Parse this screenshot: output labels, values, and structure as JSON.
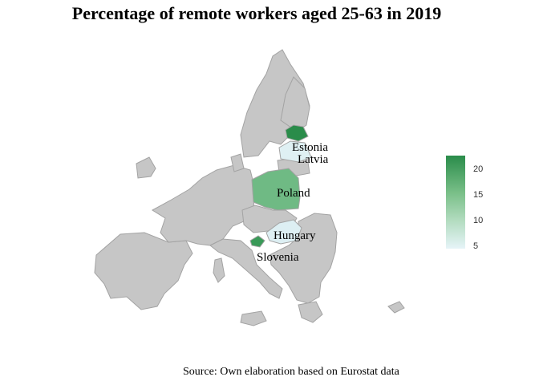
{
  "title": "Percentage of remote workers aged 25-63 in 2019",
  "source": "Source: Own elaboration based on Eurostat data",
  "colors": {
    "no_data": "#c6c6c6",
    "high": "#2a8c4a",
    "low": "#e6f4f8"
  },
  "highlighted_countries": [
    {
      "name": "Estonia",
      "value": 22,
      "color": "#2a8c4a"
    },
    {
      "name": "Latvia",
      "value": 5,
      "color": "#dff0f3"
    },
    {
      "name": "Poland",
      "value": 16,
      "color": "#6fba84"
    },
    {
      "name": "Hungary",
      "value": 5,
      "color": "#ddeff3"
    },
    {
      "name": "Slovenia",
      "value": 19,
      "color": "#3a9a58"
    }
  ],
  "legend": {
    "ticks": [
      "20",
      "15",
      "10",
      "5"
    ],
    "min": 5,
    "max": 22
  }
}
